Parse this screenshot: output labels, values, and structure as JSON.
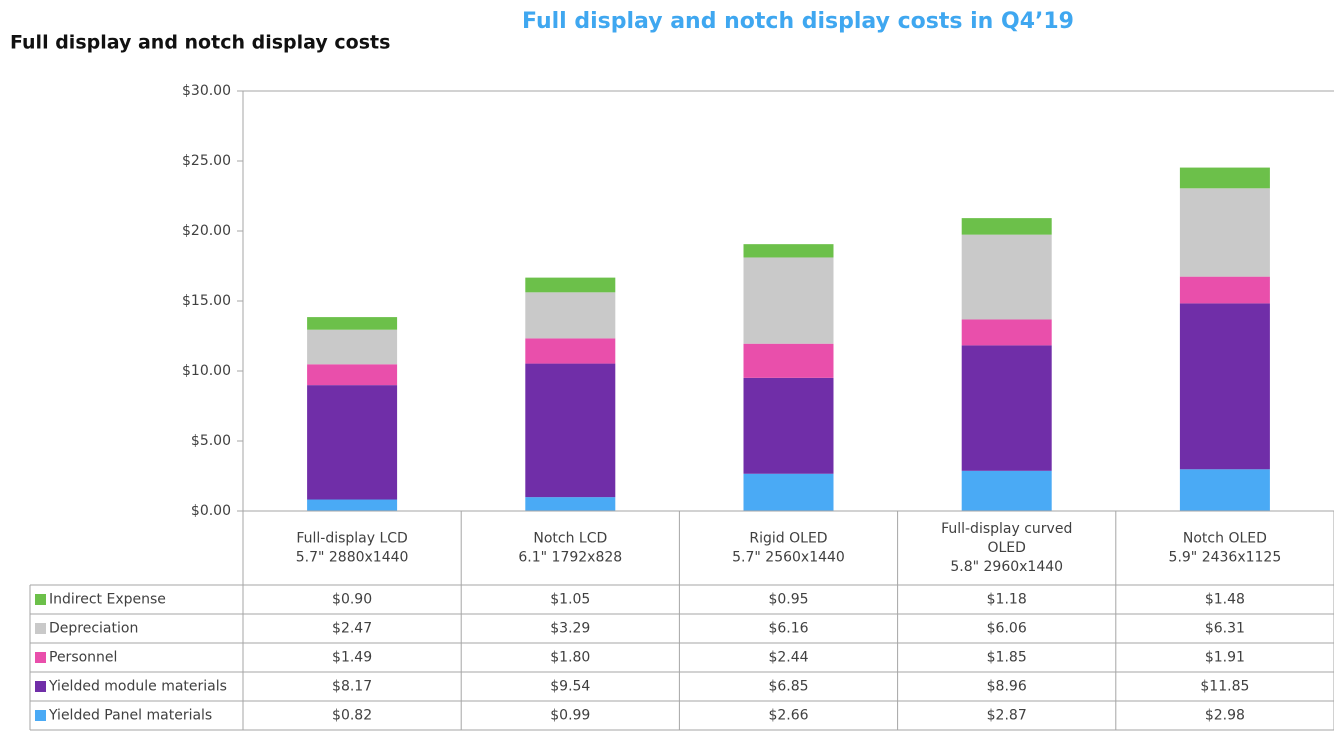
{
  "chart_data": {
    "type": "stacked_bar",
    "title": "Full display and notch display costs",
    "subtitle": "Full display and notch display costs in Q4’19",
    "categories": [
      [
        "Full-display LCD",
        "5.7\" 2880x1440"
      ],
      [
        "Notch LCD",
        "6.1\" 1792x828"
      ],
      [
        "Rigid OLED",
        "5.7\" 2560x1440"
      ],
      [
        "Full-display curved",
        "OLED",
        "5.8\" 2960x1440"
      ],
      [
        "Notch OLED",
        "5.9\" 2436x1125"
      ]
    ],
    "series": [
      {
        "name": "Yielded Panel materials",
        "color": "#4aaaf5",
        "values": [
          0.82,
          0.99,
          2.66,
          2.87,
          2.98
        ],
        "value_labels": [
          "$0.82",
          "$0.99",
          "$2.66",
          "$2.87",
          "$2.98"
        ]
      },
      {
        "name": "Yielded module materials",
        "color": "#702ea8",
        "values": [
          8.17,
          9.54,
          6.85,
          8.96,
          11.85
        ],
        "value_labels": [
          "$8.17",
          "$9.54",
          "$6.85",
          "$8.96",
          "$11.85"
        ]
      },
      {
        "name": "Personnel",
        "color": "#e94fab",
        "values": [
          1.49,
          1.8,
          2.44,
          1.85,
          1.91
        ],
        "value_labels": [
          "$1.49",
          "$1.80",
          "$2.44",
          "$1.85",
          "$1.91"
        ]
      },
      {
        "name": "Depreciation",
        "color": "#c9c9c9",
        "values": [
          2.47,
          3.29,
          6.16,
          6.06,
          6.31
        ],
        "value_labels": [
          "$2.47",
          "$3.29",
          "$6.16",
          "$6.06",
          "$6.31"
        ]
      },
      {
        "name": "Indirect Expense",
        "color": "#6cc04a",
        "values": [
          0.9,
          1.05,
          0.95,
          1.18,
          1.48
        ],
        "value_labels": [
          "$0.90",
          "$1.05",
          "$0.95",
          "$1.18",
          "$1.48"
        ]
      }
    ],
    "ylim": [
      0,
      30
    ],
    "yticks": [
      {
        "value": 0,
        "label": "$0.00"
      },
      {
        "value": 5,
        "label": "$5.00"
      },
      {
        "value": 10,
        "label": "$10.00"
      },
      {
        "value": 15,
        "label": "$15.00"
      },
      {
        "value": 20,
        "label": "$20.00"
      },
      {
        "value": 25,
        "label": "$25.00"
      },
      {
        "value": 30,
        "label": "$30.00"
      }
    ],
    "grid": false
  }
}
